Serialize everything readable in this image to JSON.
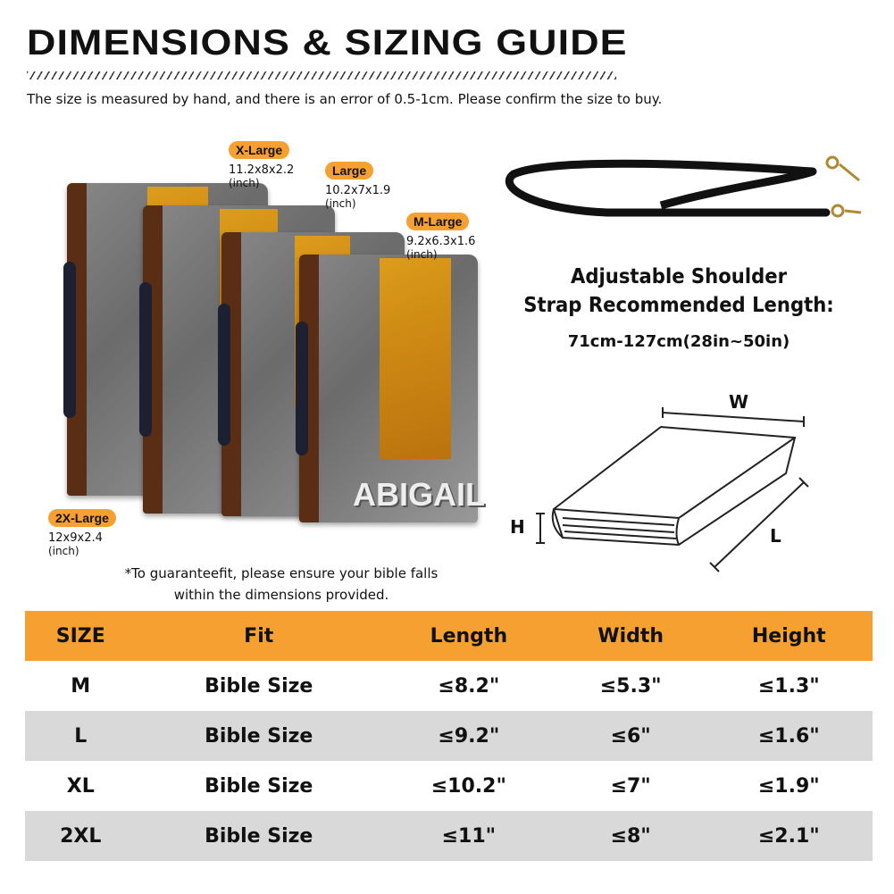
{
  "header": {
    "title": "DIMENSIONS & SIZING GUIDE",
    "subtitle": "The size is measured by hand, and there is an error of 0.5-1cm. Please confirm the size to buy."
  },
  "sizes": [
    {
      "label": "X-Large",
      "dims": "11.2x8x2.2",
      "unit": "(inch)"
    },
    {
      "label": "Large",
      "dims": "10.2x7x1.9",
      "unit": "(inch)"
    },
    {
      "label": "M-Large",
      "dims": "9.2x6.3x1.6",
      "unit": "(inch)"
    },
    {
      "label": "2X-Large",
      "dims": "12x9x2.4",
      "unit": "(inch)"
    }
  ],
  "cover_name": "ABIGAIL",
  "note": {
    "line1": "*To guaranteefit, please ensure your bible falls",
    "line2": "within the dimensions provided."
  },
  "strap": {
    "title1": "Adjustable Shoulder",
    "title2": "Strap Recommended Length:",
    "length": "71cm-127cm(28in~50in)"
  },
  "diagram": {
    "w": "W",
    "h": "H",
    "l": "L"
  },
  "table": {
    "headers": [
      "SIZE",
      "Fit",
      "Length",
      "Width",
      "Height"
    ],
    "rows": [
      [
        "M",
        "Bible Size",
        "≤8.2\"",
        "≤5.3\"",
        "≤1.3\""
      ],
      [
        "L",
        "Bible Size",
        "≤9.2\"",
        "≤6\"",
        "≤1.6\""
      ],
      [
        "XL",
        "Bible Size",
        "≤10.2\"",
        "≤7\"",
        "≤1.9\""
      ],
      [
        "2XL",
        "Bible Size",
        "≤11\"",
        "≤8\"",
        "≤2.1\""
      ]
    ]
  },
  "colors": {
    "accent": "#f5a030",
    "row_alt": "#d9d9d9"
  }
}
